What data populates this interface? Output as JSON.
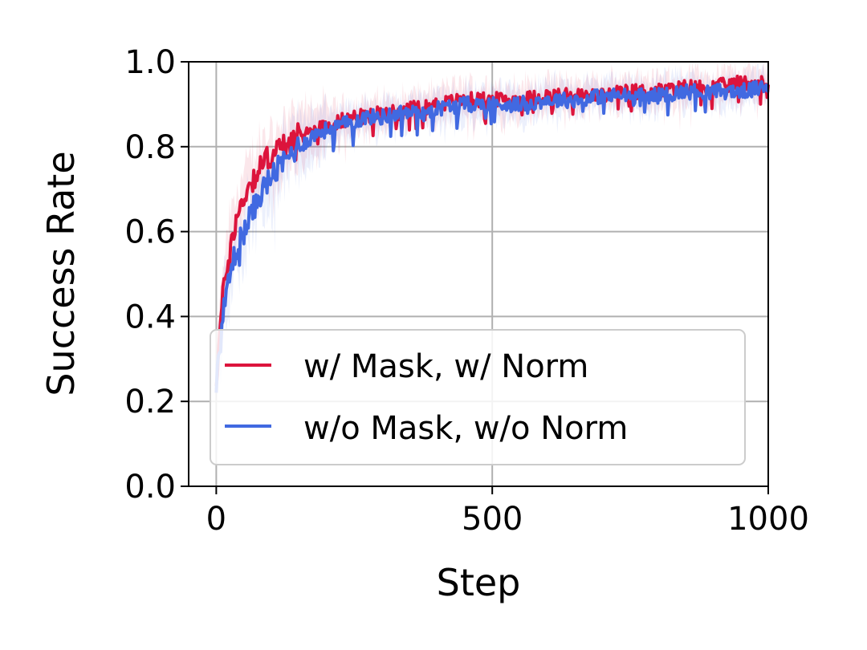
{
  "chart_data": {
    "type": "line",
    "xlabel": "Step",
    "ylabel": "Success Rate",
    "xlim": [
      -50,
      1000
    ],
    "ylim": [
      0.0,
      1.0
    ],
    "xticks": [
      0,
      500,
      1000
    ],
    "xtick_labels": [
      "0",
      "500",
      "1000"
    ],
    "yticks": [
      0.0,
      0.2,
      0.4,
      0.6,
      0.8,
      1.0
    ],
    "ytick_labels": [
      "0.0",
      "0.2",
      "0.4",
      "0.6",
      "0.8",
      "1.0"
    ],
    "grid": true,
    "legend_position": "lower-left",
    "x": [
      0,
      10,
      20,
      30,
      40,
      50,
      60,
      70,
      80,
      90,
      100,
      120,
      140,
      160,
      180,
      200,
      225,
      250,
      275,
      300,
      330,
      360,
      400,
      450,
      500,
      550,
      600,
      650,
      700,
      750,
      800,
      850,
      900,
      950,
      1000
    ],
    "series": [
      {
        "name": "w/ Mask, w/ Norm",
        "color": "#dc143c",
        "values": [
          0.25,
          0.42,
          0.53,
          0.6,
          0.64,
          0.68,
          0.71,
          0.73,
          0.75,
          0.77,
          0.78,
          0.8,
          0.82,
          0.83,
          0.84,
          0.85,
          0.86,
          0.87,
          0.87,
          0.88,
          0.88,
          0.89,
          0.9,
          0.91,
          0.91,
          0.91,
          0.92,
          0.92,
          0.92,
          0.93,
          0.93,
          0.94,
          0.94,
          0.95,
          0.95
        ]
      },
      {
        "name": "w/o Mask, w/o Norm",
        "color": "#4169e1",
        "values": [
          0.25,
          0.38,
          0.47,
          0.53,
          0.57,
          0.6,
          0.63,
          0.66,
          0.69,
          0.71,
          0.73,
          0.76,
          0.79,
          0.81,
          0.83,
          0.84,
          0.85,
          0.86,
          0.87,
          0.87,
          0.88,
          0.88,
          0.89,
          0.9,
          0.9,
          0.9,
          0.91,
          0.91,
          0.92,
          0.92,
          0.92,
          0.93,
          0.93,
          0.93,
          0.94
        ]
      }
    ]
  }
}
